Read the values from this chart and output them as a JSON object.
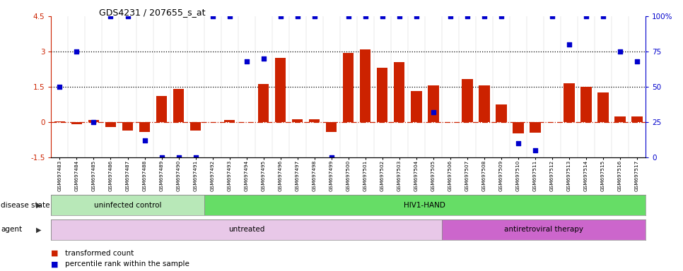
{
  "title": "GDS4231 / 207655_s_at",
  "samples": [
    "GSM697483",
    "GSM697484",
    "GSM697485",
    "GSM697486",
    "GSM697487",
    "GSM697488",
    "GSM697489",
    "GSM697490",
    "GSM697491",
    "GSM697492",
    "GSM697493",
    "GSM697494",
    "GSM697495",
    "GSM697496",
    "GSM697497",
    "GSM697498",
    "GSM697499",
    "GSM697500",
    "GSM697501",
    "GSM697502",
    "GSM697503",
    "GSM697504",
    "GSM697505",
    "GSM697506",
    "GSM697507",
    "GSM697508",
    "GSM697509",
    "GSM697510",
    "GSM697511",
    "GSM697512",
    "GSM697513",
    "GSM697514",
    "GSM697515",
    "GSM697516",
    "GSM697517"
  ],
  "bar_values": [
    0.02,
    -0.1,
    0.08,
    -0.22,
    -0.38,
    -0.42,
    1.1,
    1.42,
    -0.38,
    -0.02,
    0.07,
    -0.02,
    1.62,
    2.72,
    0.1,
    0.12,
    -0.42,
    2.95,
    3.08,
    2.32,
    2.55,
    1.32,
    1.55,
    -0.02,
    1.82,
    1.55,
    0.75,
    -0.5,
    -0.45,
    -0.02,
    1.65,
    1.5,
    1.25,
    0.22,
    0.22
  ],
  "dot_values_pct": [
    50,
    75,
    25,
    100,
    100,
    12,
    0,
    0,
    0,
    100,
    100,
    68,
    70,
    100,
    100,
    100,
    0,
    100,
    100,
    100,
    100,
    100,
    32,
    100,
    100,
    100,
    100,
    10,
    5,
    100,
    80,
    100,
    100,
    75,
    68
  ],
  "bar_color": "#cc2200",
  "dot_color": "#0000cc",
  "hline_zero_color": "#cc2200",
  "hline1": 1.5,
  "hline2": 3.0,
  "ylim_left": [
    -1.5,
    4.5
  ],
  "ylim_right": [
    0,
    100
  ],
  "yticks_left": [
    -1.5,
    0.0,
    1.5,
    3.0,
    4.5
  ],
  "yticks_right": [
    0,
    25,
    50,
    75,
    100
  ],
  "right_ytick_labels": [
    "0",
    "25",
    "50",
    "75",
    "100%"
  ],
  "disease_state_groups": [
    {
      "label": "uninfected control",
      "start": 0,
      "end": 8,
      "color": "#b8e8b8"
    },
    {
      "label": "HIV1-HAND",
      "start": 9,
      "end": 34,
      "color": "#66dd66"
    }
  ],
  "agent_groups": [
    {
      "label": "untreated",
      "start": 0,
      "end": 22,
      "color": "#e8c8e8"
    },
    {
      "label": "antiretroviral therapy",
      "start": 23,
      "end": 34,
      "color": "#cc66cc"
    }
  ],
  "legend_items": [
    {
      "label": "transformed count",
      "color": "#cc2200"
    },
    {
      "label": "percentile rank within the sample",
      "color": "#0000cc"
    }
  ],
  "disease_state_label": "disease state",
  "agent_label": "agent"
}
